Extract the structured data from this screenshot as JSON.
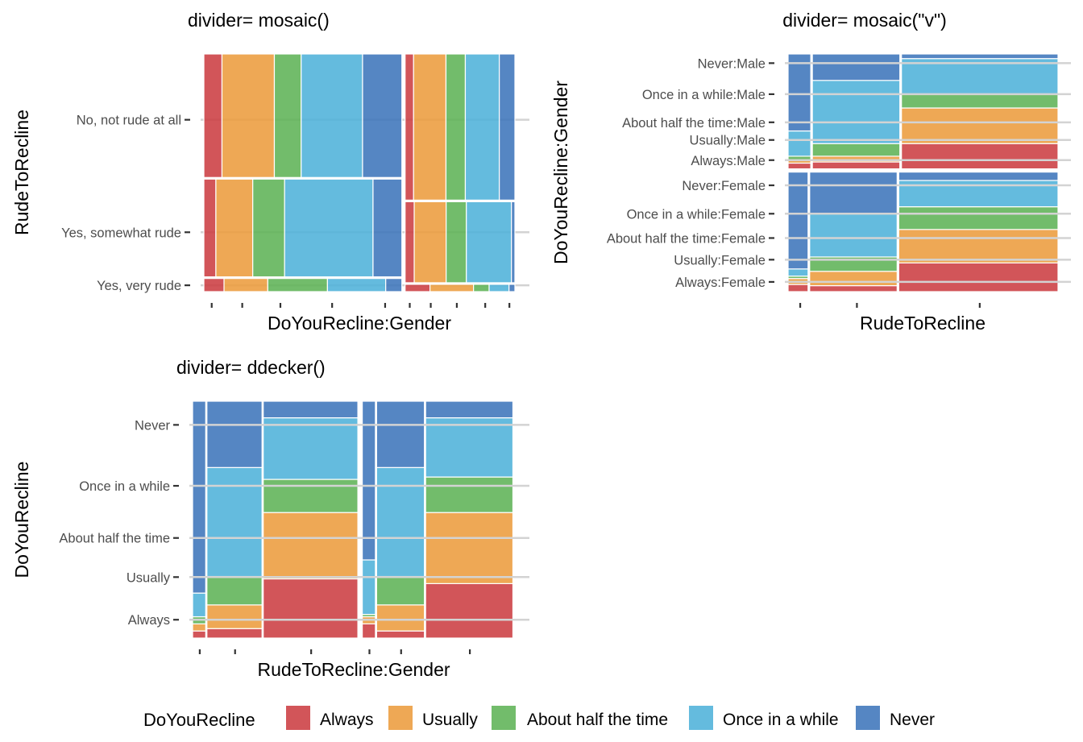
{
  "chart_data": [
    {
      "type": "mosaic",
      "title": "divider= mosaic()",
      "xlabel": "DoYouRecline:Gender",
      "ylabel": "RudeToRecline",
      "y_tick_labels": [
        "Yes, very rude",
        "Yes, somewhat rude",
        "No, not rude at all"
      ],
      "gender_groups": [
        "Male",
        "Female"
      ],
      "recline_levels": [
        "Always",
        "Usually",
        "About half the time",
        "Once in a while",
        "Never"
      ],
      "column_widths": {
        "Male": [
          0.037,
          0.107,
          0.073,
          0.171,
          0.079
        ],
        "Female": [
          0.022,
          0.077,
          0.046,
          0.088,
          0.026
        ]
      },
      "row_proportions": {
        "Male": [
          [
            0.08,
            0.32,
            0.6
          ],
          [
            0.06,
            0.34,
            0.6
          ],
          [
            0.12,
            0.43,
            0.45
          ],
          [
            0.05,
            0.51,
            0.44
          ],
          [
            0.03,
            0.36,
            0.61
          ]
        ],
        "Female": [
          [
            0.1,
            0.34,
            0.56
          ],
          [
            0.05,
            0.34,
            0.61
          ],
          [
            0.03,
            0.36,
            0.61
          ],
          [
            0.02,
            0.42,
            0.56
          ],
          [
            0.02,
            0.11,
            0.87
          ]
        ]
      }
    },
    {
      "type": "mosaic",
      "title": "divider= mosaic(\"v\")",
      "xlabel": "RudeToRecline",
      "ylabel": "DoYouRecline:Gender",
      "y_tick_labels": [
        "Always:Female",
        "Usually:Female",
        "About half the time:Female",
        "Once in a while:Female",
        "Never:Female",
        "Always:Male",
        "Usually:Male",
        "About half the time:Male",
        "Once in a while:Male",
        "Never:Male"
      ],
      "gender_groups": [
        "Male",
        "Female"
      ],
      "rude_levels": [
        "Yes, very rude",
        "Yes, somewhat rude",
        "No, not rude at all"
      ],
      "recline_levels": [
        "Always",
        "Usually",
        "About half the time",
        "Once in a while",
        "Never"
      ],
      "gender_proportion": {
        "Male": 0.49,
        "Female": 0.51
      },
      "column_widths": {
        "Male": [
          0.09,
          0.33,
          0.58
        ],
        "Female": [
          0.08,
          0.33,
          0.59
        ]
      },
      "cell_proportions": {
        "Male": [
          [
            0.05,
            0.03,
            0.03,
            0.22,
            0.67
          ],
          [
            0.06,
            0.05,
            0.11,
            0.55,
            0.23
          ],
          [
            0.22,
            0.31,
            0.12,
            0.31,
            0.04
          ]
        ],
        "Female": [
          [
            0.06,
            0.05,
            0.02,
            0.06,
            0.81
          ],
          [
            0.05,
            0.12,
            0.12,
            0.36,
            0.35
          ],
          [
            0.24,
            0.28,
            0.19,
            0.22,
            0.07
          ]
        ]
      }
    },
    {
      "type": "ddecker",
      "title": "divider= ddecker()",
      "xlabel": "RudeToRecline:Gender",
      "ylabel": "DoYouRecline",
      "y_tick_labels": [
        "Always",
        "Usually",
        "About half the time",
        "Once in a while",
        "Never"
      ],
      "gender_groups": [
        "Male",
        "Female"
      ],
      "rude_levels": [
        "Yes, very rude",
        "Yes, somewhat rude",
        "No, not rude at all"
      ],
      "recline_levels": [
        "Always",
        "Usually",
        "About half the time",
        "Once in a while",
        "Never"
      ],
      "column_widths": {
        "Male": [
          0.045,
          0.177,
          0.301
        ],
        "Female": [
          0.045,
          0.154,
          0.278
        ]
      },
      "cell_proportions": {
        "Male": [
          [
            0.03,
            0.03,
            0.03,
            0.1,
            0.81
          ],
          [
            0.04,
            0.1,
            0.12,
            0.46,
            0.28
          ],
          [
            0.25,
            0.28,
            0.14,
            0.26,
            0.07
          ]
        ],
        "Female": [
          [
            0.06,
            0.03,
            0.01,
            0.23,
            0.67
          ],
          [
            0.03,
            0.11,
            0.12,
            0.46,
            0.28
          ],
          [
            0.23,
            0.3,
            0.15,
            0.25,
            0.07
          ]
        ]
      }
    }
  ],
  "legend": {
    "title": "DoYouRecline",
    "entries": [
      {
        "label": "Always",
        "color": "#cc3d42"
      },
      {
        "label": "Usually",
        "color": "#ec9c3e"
      },
      {
        "label": "About half the time",
        "color": "#5fb356"
      },
      {
        "label": "Once in a while",
        "color": "#4eb2da"
      },
      {
        "label": "Never",
        "color": "#3d75bb"
      }
    ]
  }
}
